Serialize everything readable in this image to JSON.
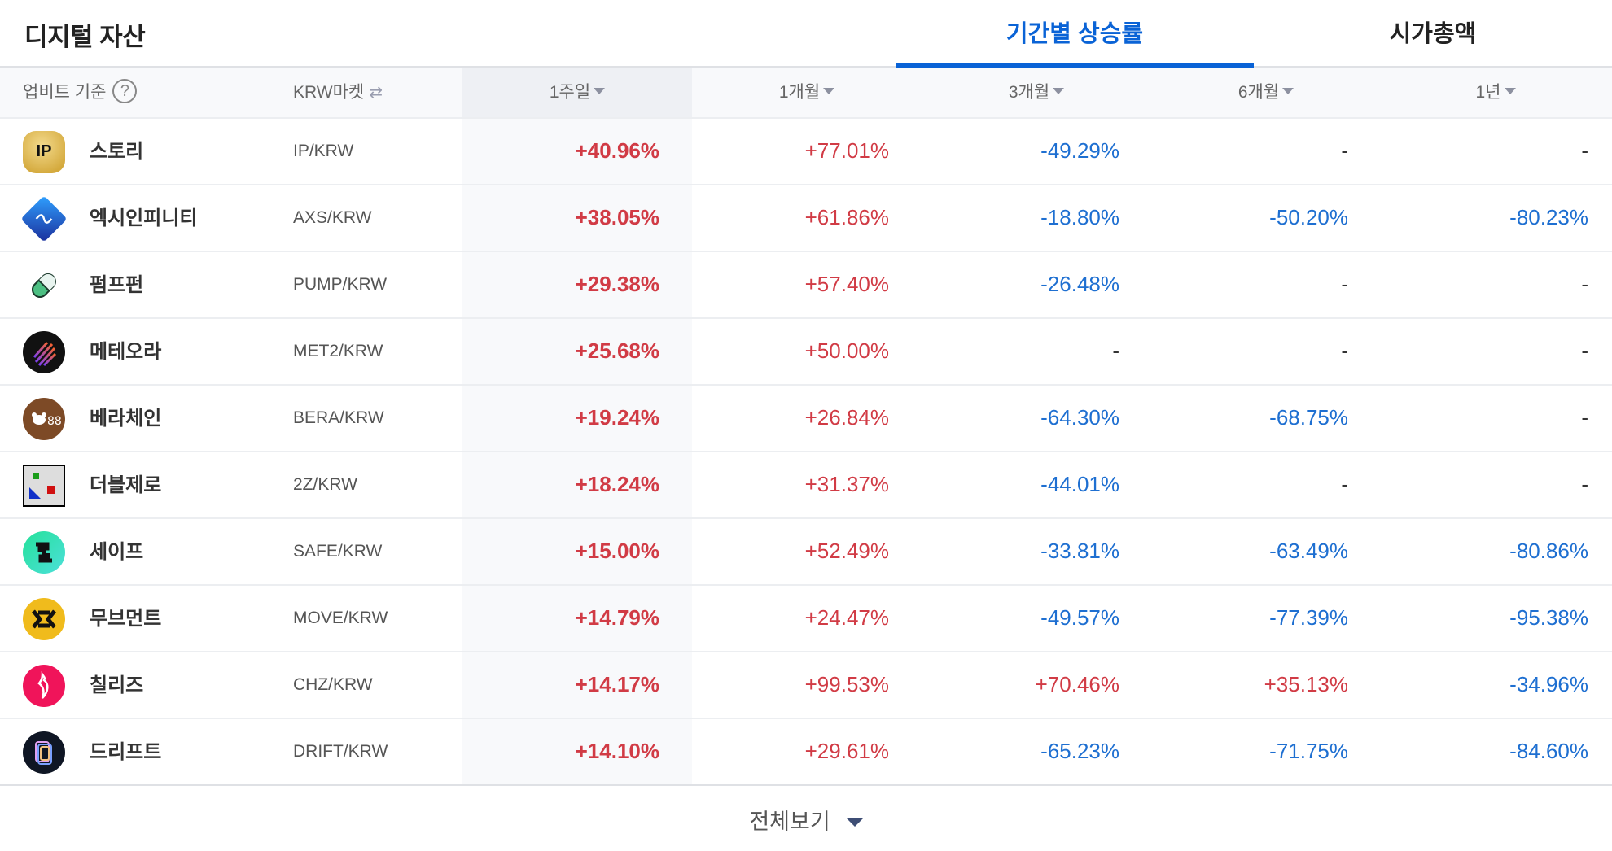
{
  "header": {
    "title": "디지털 자산",
    "tabs": [
      {
        "label": "기간별 상승률",
        "active": true
      },
      {
        "label": "시가총액",
        "active": false
      }
    ]
  },
  "table": {
    "columns": {
      "basis": "업비트 기준",
      "basis_help_icon": "question-circle-icon",
      "market": "KRW마켓",
      "market_toggle_icon": "swap-arrows-icon",
      "w1": "1주일",
      "m1": "1개월",
      "m3": "3개월",
      "m6": "6개월",
      "y1": "1년",
      "sort_icon": "triangle-down-icon",
      "selected_sort": "1주일"
    },
    "rows": [
      {
        "icon": "story-ip-logo",
        "name": "스토리",
        "pair": "IP/KRW",
        "w1": "+40.96%",
        "m1": "+77.01%",
        "m3": "-49.29%",
        "m6": "-",
        "y1": "-"
      },
      {
        "icon": "axie-infinity-logo",
        "name": "엑시인피니티",
        "pair": "AXS/KRW",
        "w1": "+38.05%",
        "m1": "+61.86%",
        "m3": "-18.80%",
        "m6": "-50.20%",
        "y1": "-80.23%"
      },
      {
        "icon": "pump-fun-pill-logo",
        "name": "펌프펀",
        "pair": "PUMP/KRW",
        "w1": "+29.38%",
        "m1": "+57.40%",
        "m3": "-26.48%",
        "m6": "-",
        "y1": "-"
      },
      {
        "icon": "meteora-logo",
        "name": "메테오라",
        "pair": "MET2/KRW",
        "w1": "+25.68%",
        "m1": "+50.00%",
        "m3": "-",
        "m6": "-",
        "y1": "-"
      },
      {
        "icon": "berachain-logo",
        "name": "베라체인",
        "pair": "BERA/KRW",
        "w1": "+19.24%",
        "m1": "+26.84%",
        "m3": "-64.30%",
        "m6": "-68.75%",
        "y1": "-"
      },
      {
        "icon": "broken-image-icon",
        "name": "더블제로",
        "pair": "2Z/KRW",
        "w1": "+18.24%",
        "m1": "+31.37%",
        "m3": "-44.01%",
        "m6": "-",
        "y1": "-"
      },
      {
        "icon": "safe-logo",
        "name": "세이프",
        "pair": "SAFE/KRW",
        "w1": "+15.00%",
        "m1": "+52.49%",
        "m3": "-33.81%",
        "m6": "-63.49%",
        "y1": "-80.86%"
      },
      {
        "icon": "movement-logo",
        "name": "무브먼트",
        "pair": "MOVE/KRW",
        "w1": "+14.79%",
        "m1": "+24.47%",
        "m3": "-49.57%",
        "m6": "-77.39%",
        "y1": "-95.38%"
      },
      {
        "icon": "chiliz-logo",
        "name": "칠리즈",
        "pair": "CHZ/KRW",
        "w1": "+14.17%",
        "m1": "+99.53%",
        "m3": "+70.46%",
        "m6": "+35.13%",
        "y1": "-34.96%"
      },
      {
        "icon": "drift-logo",
        "name": "드리프트",
        "pair": "DRIFT/KRW",
        "w1": "+14.10%",
        "m1": "+29.61%",
        "m3": "-65.23%",
        "m6": "-71.75%",
        "y1": "-84.60%"
      }
    ]
  },
  "footer": {
    "more_label": "전체보기",
    "more_icon": "triangle-down-icon"
  },
  "colors": {
    "accent": "#0962d6",
    "positive": "#d13b45",
    "negative": "#1e6fd1",
    "header_bg": "#f8f9fb",
    "selected_header_bg": "#eef0f4"
  }
}
